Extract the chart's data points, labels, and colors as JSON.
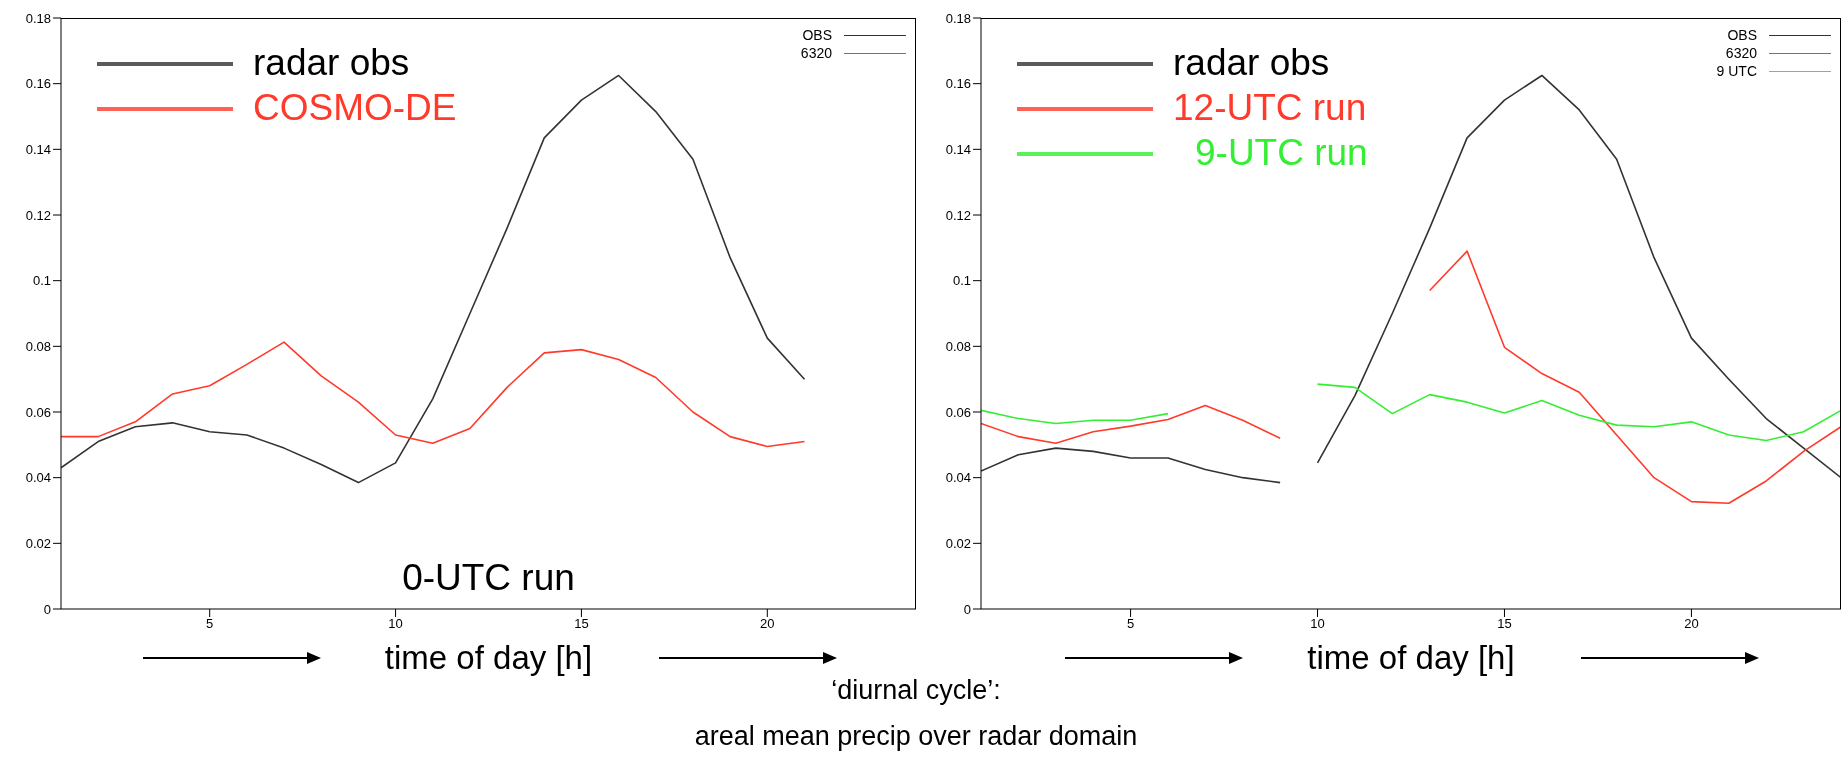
{
  "chart_data": [
    {
      "type": "line",
      "xlabel": "time of day  [h]",
      "xlim": [
        1,
        24
      ],
      "xticks": [
        5,
        10,
        15,
        20
      ],
      "ylim": [
        0,
        0.18
      ],
      "yticks": [
        0,
        0.02,
        0.04,
        0.06,
        0.08,
        0.1,
        0.12,
        0.14,
        0.16,
        0.18
      ],
      "legend": "top right",
      "x": [
        1,
        2,
        3,
        4,
        5,
        6,
        7,
        8,
        9,
        10,
        11,
        12,
        13,
        14,
        15,
        16,
        17,
        18,
        19,
        20,
        21
      ],
      "series": [
        {
          "name": "OBS",
          "color": "#333333",
          "values": [
            0.043,
            0.051,
            0.0555,
            0.0567,
            0.054,
            0.053,
            0.049,
            0.044,
            0.0385,
            0.0445,
            0.064,
            0.09,
            0.116,
            0.1435,
            0.155,
            0.1625,
            0.1515,
            0.137,
            0.107,
            0.0825,
            0.07
          ]
        },
        {
          "name": "6320",
          "color": "#ff3a2a",
          "values": [
            0.0525,
            0.0525,
            0.057,
            0.0655,
            0.068,
            0.0745,
            0.0813,
            0.071,
            0.063,
            0.053,
            0.0505,
            0.055,
            0.0675,
            0.078,
            0.079,
            0.076,
            0.0705,
            0.06,
            0.0525,
            0.0495,
            0.051
          ]
        }
      ],
      "annotations": [
        "radar obs",
        "COSMO-DE",
        "0-UTC run"
      ]
    },
    {
      "type": "line",
      "xlabel": "time of day  [h]",
      "xlim": [
        1,
        24
      ],
      "xticks": [
        5,
        10,
        15,
        20
      ],
      "ylim": [
        0,
        0.18
      ],
      "yticks": [
        0,
        0.02,
        0.04,
        0.06,
        0.08,
        0.1,
        0.12,
        0.14,
        0.16,
        0.18
      ],
      "legend": "top right",
      "x": [
        1,
        2,
        3,
        4,
        5,
        6,
        7,
        8,
        9,
        10,
        11,
        12,
        13,
        14,
        15,
        16,
        17,
        18,
        19,
        20,
        21,
        22,
        23,
        24
      ],
      "series": [
        {
          "name": "OBS",
          "color": "#333333",
          "x": [
            1,
            2,
            3,
            4,
            5,
            6,
            7,
            8,
            9,
            9.5,
            10,
            11,
            12,
            13,
            14,
            15,
            16,
            17,
            18,
            19,
            20,
            21,
            22,
            23,
            24
          ],
          "values": [
            0.042,
            0.047,
            0.049,
            0.048,
            0.046,
            0.046,
            0.0425,
            0.04,
            0.0385,
            null,
            0.0445,
            0.065,
            0.09,
            0.116,
            0.1435,
            0.155,
            0.1625,
            0.152,
            0.137,
            0.107,
            0.0825,
            0.07,
            0.058,
            0.049,
            0.04
          ]
        },
        {
          "name": "6320",
          "color": "#ff3a2a",
          "values": [
            0.0565,
            0.0525,
            0.0505,
            0.054,
            0.0557,
            0.0577,
            0.062,
            0.0575,
            0.052,
            null,
            null,
            null,
            0.097,
            0.109,
            0.0797,
            0.0717,
            0.066,
            0.053,
            0.04,
            0.0327,
            0.0322,
            0.039,
            0.048,
            0.0555
          ]
        },
        {
          "name": "9 UTC",
          "color": "#33ee33",
          "values": [
            0.0605,
            0.058,
            0.0565,
            0.0575,
            0.0575,
            0.0595,
            null,
            null,
            null,
            0.0685,
            0.0675,
            0.0595,
            0.0653,
            0.063,
            0.0597,
            0.0635,
            0.059,
            0.056,
            0.0555,
            0.057,
            0.053,
            0.0513,
            0.054,
            0.0605
          ]
        }
      ],
      "annotations": [
        "radar obs",
        "12-UTC run",
        "9-UTC run",
        "‘diurnal cycle’:",
        "areal mean precip over radar domain"
      ]
    }
  ]
}
